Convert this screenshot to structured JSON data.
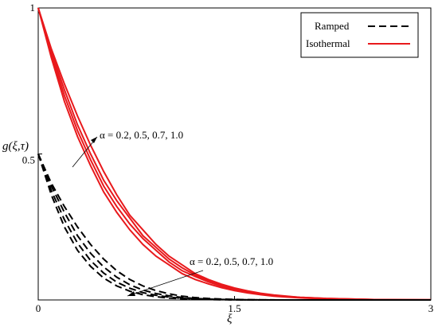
{
  "chart_data": {
    "type": "line",
    "xlabel": "ξ",
    "ylabel": "g(ξ,τ)",
    "xlim": [
      0,
      3
    ],
    "ylim": [
      0,
      1
    ],
    "xticks": [
      "0",
      "1.5",
      "3"
    ],
    "yticks": [
      "1",
      "0.5"
    ],
    "grid": false,
    "legend_position": "top-right",
    "legend": [
      {
        "label": "Ramped",
        "style": "dashed",
        "color": "#000000"
      },
      {
        "label": "Isothermal",
        "style": "solid",
        "color": "#e8191c"
      }
    ],
    "annotations": [
      {
        "text": "α = 0.2, 0.5, 0.7, 1.0",
        "target": "Isothermal"
      },
      {
        "text": "α = 0.2, 0.5, 0.7, 1.0",
        "target": "Ramped"
      }
    ],
    "x": [
      0,
      0.1,
      0.2,
      0.3,
      0.4,
      0.5,
      0.6,
      0.7,
      0.8,
      0.9,
      1.0,
      1.1,
      1.2,
      1.3,
      1.4,
      1.5,
      1.6,
      1.7,
      1.8,
      1.9,
      2.0,
      2.2,
      2.4,
      2.6,
      2.8,
      3.0
    ],
    "series": [
      {
        "group": "Isothermal",
        "alpha": "0.2",
        "values": [
          1.0,
          0.83,
          0.68,
          0.56,
          0.46,
          0.37,
          0.3,
          0.24,
          0.19,
          0.15,
          0.12,
          0.09,
          0.07,
          0.055,
          0.042,
          0.032,
          0.024,
          0.018,
          0.013,
          0.01,
          0.007,
          0.004,
          0.002,
          0.001,
          0.0005,
          0.0002
        ]
      },
      {
        "group": "Isothermal",
        "alpha": "0.5",
        "values": [
          1.0,
          0.84,
          0.7,
          0.58,
          0.48,
          0.39,
          0.32,
          0.26,
          0.21,
          0.17,
          0.13,
          0.1,
          0.08,
          0.062,
          0.047,
          0.036,
          0.027,
          0.02,
          0.015,
          0.011,
          0.008,
          0.004,
          0.002,
          0.001,
          0.0005,
          0.0002
        ]
      },
      {
        "group": "Isothermal",
        "alpha": "0.7",
        "values": [
          1.0,
          0.85,
          0.72,
          0.6,
          0.5,
          0.41,
          0.34,
          0.28,
          0.22,
          0.18,
          0.14,
          0.11,
          0.085,
          0.066,
          0.05,
          0.038,
          0.029,
          0.022,
          0.016,
          0.012,
          0.009,
          0.005,
          0.003,
          0.001,
          0.0006,
          0.0002
        ]
      },
      {
        "group": "Isothermal",
        "alpha": "1.0",
        "values": [
          1.0,
          0.86,
          0.74,
          0.63,
          0.53,
          0.44,
          0.36,
          0.29,
          0.24,
          0.19,
          0.15,
          0.12,
          0.09,
          0.07,
          0.054,
          0.041,
          0.031,
          0.023,
          0.017,
          0.013,
          0.009,
          0.005,
          0.003,
          0.001,
          0.0006,
          0.0002
        ]
      },
      {
        "group": "Ramped",
        "alpha": "0.2",
        "values": [
          0.5,
          0.36,
          0.25,
          0.17,
          0.115,
          0.075,
          0.048,
          0.03,
          0.018,
          0.011,
          0.0065,
          0.004,
          0.0023,
          0.0013,
          0.0007,
          0.0004,
          0.0002,
          0.0001,
          0.0001,
          0,
          0,
          0,
          0,
          0,
          0,
          0
        ]
      },
      {
        "group": "Ramped",
        "alpha": "0.5",
        "values": [
          0.5,
          0.375,
          0.275,
          0.195,
          0.135,
          0.092,
          0.061,
          0.04,
          0.025,
          0.016,
          0.0095,
          0.0058,
          0.0034,
          0.002,
          0.0011,
          0.0006,
          0.0003,
          0.0002,
          0.0001,
          0,
          0,
          0,
          0,
          0,
          0,
          0
        ]
      },
      {
        "group": "Ramped",
        "alpha": "0.7",
        "values": [
          0.5,
          0.39,
          0.3,
          0.22,
          0.16,
          0.113,
          0.078,
          0.052,
          0.034,
          0.022,
          0.014,
          0.0085,
          0.005,
          0.003,
          0.0017,
          0.001,
          0.0005,
          0.0003,
          0.0001,
          0,
          0,
          0,
          0,
          0,
          0,
          0
        ]
      },
      {
        "group": "Ramped",
        "alpha": "1.0",
        "values": [
          0.5,
          0.4,
          0.32,
          0.25,
          0.19,
          0.14,
          0.1,
          0.07,
          0.048,
          0.032,
          0.021,
          0.013,
          0.008,
          0.005,
          0.003,
          0.0017,
          0.0009,
          0.0005,
          0.0002,
          0.0001,
          0,
          0,
          0,
          0,
          0,
          0
        ]
      }
    ]
  }
}
